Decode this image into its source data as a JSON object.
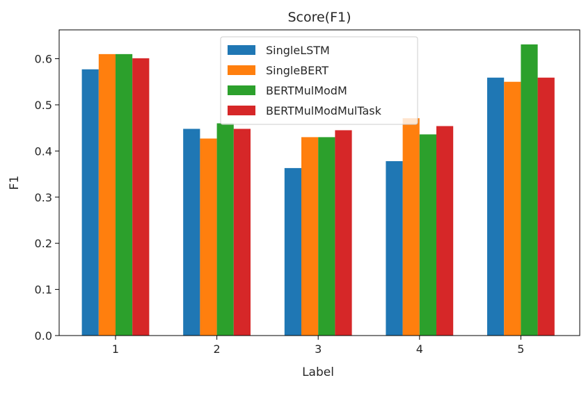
{
  "chart_data": {
    "type": "bar",
    "title": "Score(F1)",
    "xlabel": "Label",
    "ylabel": "F1",
    "categories": [
      "1",
      "2",
      "3",
      "4",
      "5"
    ],
    "ylim": [
      0,
      0.6625
    ],
    "yticks": [
      0.0,
      0.1,
      0.2,
      0.3,
      0.4,
      0.5,
      0.6
    ],
    "ytick_labels": [
      "0.0",
      "0.1",
      "0.2",
      "0.3",
      "0.4",
      "0.5",
      "0.6"
    ],
    "grid": false,
    "legend_position": "top-center",
    "series": [
      {
        "name": "SingleLSTM",
        "color": "#1f77b4",
        "values": [
          0.577,
          0.448,
          0.363,
          0.378,
          0.559
        ]
      },
      {
        "name": "SingleBERT",
        "color": "#ff7f0e",
        "values": [
          0.61,
          0.427,
          0.43,
          0.471,
          0.55
        ]
      },
      {
        "name": "BERTMulModM",
        "color": "#2ca02c",
        "values": [
          0.61,
          0.46,
          0.43,
          0.436,
          0.631
        ]
      },
      {
        "name": "BERTMulModMulTask",
        "color": "#d62728",
        "values": [
          0.601,
          0.448,
          0.445,
          0.454,
          0.559
        ]
      }
    ]
  }
}
